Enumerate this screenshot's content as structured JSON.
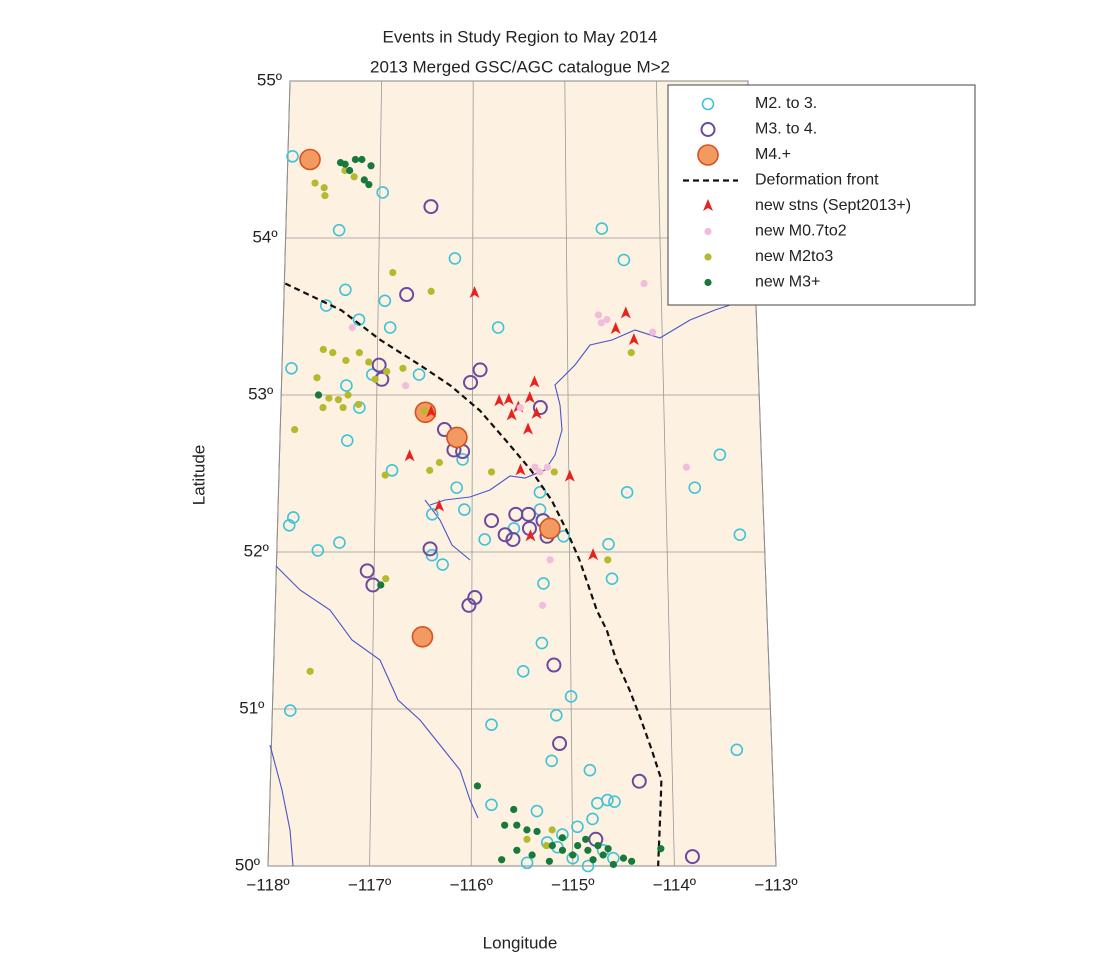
{
  "chart_data": {
    "type": "scatter",
    "title": "Events in Study Region to May 2014",
    "subtitle": "2013 Merged GSC/AGC catalogue M>2",
    "x_label": "Longitude",
    "y_label": "Latitude",
    "xlim": [
      -118,
      -113
    ],
    "ylim": [
      50,
      55
    ],
    "xticks": [
      {
        "value": -118,
        "label": "−118º"
      },
      {
        "value": -117,
        "label": "−117º"
      },
      {
        "value": -116,
        "label": "−116º"
      },
      {
        "value": -115,
        "label": "−115º"
      },
      {
        "value": -114,
        "label": "−114º"
      },
      {
        "value": -113,
        "label": "−113º"
      }
    ],
    "yticks": [
      {
        "value": 50,
        "label": "50º"
      },
      {
        "value": 51,
        "label": "51º"
      },
      {
        "value": 52,
        "label": "52º"
      },
      {
        "value": 53,
        "label": "53º"
      },
      {
        "value": 54,
        "label": "54º"
      },
      {
        "value": 55,
        "label": "55º"
      }
    ],
    "grid": true,
    "legend": "upper right",
    "series": [
      {
        "name": "M2. to 3.",
        "color": "#3fc3d8",
        "marker": "circle-open",
        "x": [
          -117.95,
          -116.97,
          -117.43,
          -117.35,
          -117.55,
          -117.2,
          -116.93,
          -116.87,
          -116.19,
          -115.73,
          -117.32,
          -117.05,
          -117.18,
          -117.3,
          -117.9,
          -116.83,
          -116.56,
          -116.41,
          -116.1,
          -116.16,
          -116.08,
          -117.88,
          -117.84,
          -117.58,
          -117.36,
          -116.41,
          -116.3,
          -115.87,
          -115.57,
          -115.3,
          -115.3,
          -115.06,
          -114.6,
          -114.57,
          -115.27,
          -115.29,
          -115.48,
          -115.0,
          -115.15,
          -115.8,
          -115.2,
          -114.82,
          -114.65,
          -114.58,
          -115.8,
          -117.82,
          -114.62,
          -114.39,
          -114.4,
          -113.7,
          -113.43,
          -113.25,
          -113.35,
          -115.45,
          -115.25,
          -115.1,
          -114.95,
          -114.8,
          -114.7,
          -115.0,
          -114.85,
          -114.6,
          -115.35,
          -114.75,
          -115.15
        ],
        "y": [
          54.52,
          54.29,
          54.05,
          53.67,
          53.57,
          53.48,
          53.6,
          53.43,
          53.87,
          53.43,
          53.06,
          53.13,
          52.92,
          52.71,
          53.17,
          52.52,
          53.13,
          52.24,
          52.59,
          52.41,
          52.27,
          52.17,
          52.22,
          52.01,
          52.06,
          51.98,
          51.92,
          52.08,
          52.15,
          52.38,
          52.27,
          52.1,
          52.05,
          51.83,
          51.8,
          51.42,
          51.24,
          51.08,
          50.96,
          50.9,
          50.67,
          50.61,
          50.42,
          50.41,
          50.39,
          50.99,
          54.06,
          53.86,
          52.38,
          52.41,
          52.62,
          52.11,
          50.74,
          50.02,
          50.15,
          50.2,
          50.25,
          50.3,
          50.1,
          50.05,
          50.0,
          50.05,
          50.35,
          50.4,
          50.12
        ]
      },
      {
        "name": "M3. to 4.",
        "color": "#6b4a9e",
        "marker": "circle-open-large",
        "x": [
          -116.45,
          -116.7,
          -116.98,
          -116.95,
          -115.92,
          -116.02,
          -115.29,
          -116.29,
          -116.19,
          -116.1,
          -115.8,
          -115.55,
          -115.42,
          -115.41,
          -115.27,
          -115.23,
          -115.66,
          -115.58,
          -116.43,
          -117.07,
          -117.01,
          -115.97,
          -116.03,
          -115.17,
          -115.12,
          -114.33,
          -113.82,
          -114.77
        ],
        "y": [
          54.2,
          53.64,
          53.19,
          53.1,
          53.16,
          53.08,
          52.92,
          52.78,
          52.65,
          52.64,
          52.2,
          52.24,
          52.24,
          52.15,
          52.2,
          52.1,
          52.11,
          52.08,
          52.02,
          51.88,
          51.79,
          51.71,
          51.66,
          51.28,
          50.78,
          50.54,
          50.06,
          50.17
        ]
      },
      {
        "name": "M4.+",
        "color": "#f39a62",
        "marker": "circle-filled-large",
        "x": [
          -117.76,
          -116.49,
          -116.16,
          -115.2,
          -116.5
        ],
        "y": [
          54.5,
          52.89,
          52.73,
          52.15,
          51.46
        ]
      },
      {
        "name": "Deformation front",
        "color": "#111111",
        "marker": "dashed-line",
        "x": [
          -117.99,
          -117.39,
          -116.97,
          -116.55,
          -116.23,
          -115.92,
          -115.65,
          -115.39,
          -115.18,
          -115.03,
          -114.9,
          -114.83,
          -114.73,
          -114.63,
          -114.54,
          -114.41,
          -114.3,
          -114.2,
          -114.11,
          -114.12,
          -114.16
        ],
        "y": [
          53.71,
          53.54,
          53.35,
          53.19,
          53.06,
          52.9,
          52.71,
          52.52,
          52.33,
          52.14,
          51.95,
          51.82,
          51.63,
          51.5,
          51.31,
          51.12,
          50.93,
          50.74,
          50.55,
          50.42,
          50.0
        ]
      },
      {
        "name": "new stns (Sept2013+)",
        "color": "#e8231f",
        "marker": "triangle",
        "x": [
          -115.98,
          -114.38,
          -114.49,
          -114.3,
          -115.72,
          -115.62,
          -115.52,
          -115.4,
          -115.35,
          -115.59,
          -115.33,
          -115.42,
          -116.43,
          -116.65,
          -115.5,
          -114.99,
          -116.34,
          -115.4,
          -114.76
        ],
        "y": [
          53.65,
          53.52,
          53.42,
          53.35,
          52.96,
          52.97,
          52.92,
          52.98,
          53.08,
          52.87,
          52.88,
          52.78,
          52.89,
          52.61,
          52.52,
          52.48,
          52.29,
          52.1,
          51.98
        ]
      },
      {
        "name": "new M0.7to2",
        "color": "#f2bcdc",
        "marker": "dot",
        "x": [
          -114.18,
          -114.67,
          -114.64,
          -114.58,
          -114.1,
          -117.27,
          -115.5,
          -115.35,
          -115.3,
          -115.22,
          -113.78,
          -115.2,
          -115.28,
          -116.7
        ],
        "y": [
          53.71,
          53.51,
          53.46,
          53.48,
          53.4,
          53.43,
          52.92,
          52.54,
          52.51,
          52.54,
          52.54,
          51.95,
          51.66,
          53.06
        ]
      },
      {
        "name": "new M2to3",
        "color": "#b5b92c",
        "marker": "dot",
        "x": [
          -117.7,
          -117.59,
          -117.6,
          -117.28,
          -117.38,
          -116.85,
          -116.44,
          -117.57,
          -117.47,
          -117.33,
          -117.19,
          -117.09,
          -117.02,
          -116.9,
          -117.63,
          -117.61,
          -117.5,
          -117.4,
          -117.3,
          -117.56,
          -117.35,
          -117.19,
          -117.85,
          -116.5,
          -116.44,
          -116.34,
          -116.9,
          -116.73,
          -115.8,
          -115.15,
          -114.61,
          -116.88,
          -117.63,
          -114.33,
          -115.2,
          -115.45,
          -115.26
        ],
        "y": [
          54.35,
          54.27,
          54.32,
          54.39,
          54.43,
          53.78,
          53.66,
          53.29,
          53.27,
          53.22,
          53.27,
          53.21,
          53.1,
          53.15,
          53.11,
          53.0,
          52.98,
          52.97,
          53.0,
          52.92,
          52.92,
          52.94,
          52.78,
          52.9,
          52.52,
          52.57,
          52.49,
          53.17,
          52.51,
          52.51,
          51.95,
          51.83,
          51.24,
          53.27,
          50.23,
          50.17,
          50.13
        ]
      },
      {
        "name": "new M3+",
        "color": "#17793a",
        "marker": "dot",
        "x": [
          -117.38,
          -117.43,
          -117.33,
          -117.2,
          -117.27,
          -117.17,
          -117.12,
          -117.1,
          -117.61,
          -116.93,
          -115.94,
          -115.58,
          -115.67,
          -115.55,
          -115.45,
          -115.35,
          -115.7,
          -115.55,
          -115.4,
          -115.2,
          -115.1,
          -115.0,
          -114.85,
          -114.8,
          -114.7,
          -114.6,
          -114.5,
          -114.42,
          -114.87,
          -114.75,
          -114.65,
          -115.1,
          -115.23,
          -114.13,
          -114.95
        ],
        "y": [
          54.47,
          54.48,
          54.43,
          54.5,
          54.5,
          54.37,
          54.34,
          54.46,
          53.0,
          51.79,
          50.51,
          50.36,
          50.26,
          50.26,
          50.23,
          50.22,
          50.04,
          50.1,
          50.07,
          50.13,
          50.1,
          50.07,
          50.1,
          50.04,
          50.07,
          50.01,
          50.05,
          50.03,
          50.17,
          50.13,
          50.11,
          50.18,
          50.03,
          50.11,
          50.13
        ]
      }
    ]
  }
}
